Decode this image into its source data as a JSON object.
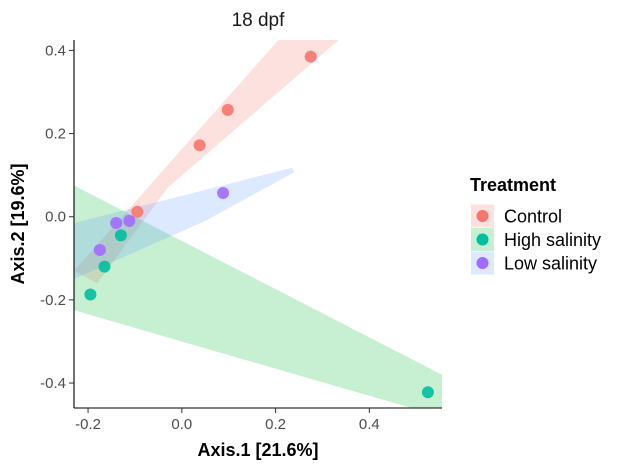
{
  "chart_data": {
    "type": "scatter",
    "title": "18 dpf",
    "xlabel": "Axis.1   [21.6%]",
    "ylabel": "Axis.2   [19.6%]",
    "xlim": [
      -0.23,
      0.555
    ],
    "ylim": [
      -0.46,
      0.425
    ],
    "x_ticks": [
      -0.2,
      0.0,
      0.2,
      0.4
    ],
    "x_tick_labels": [
      "-0.2",
      "0.0",
      "0.2",
      "0.4"
    ],
    "y_ticks": [
      -0.4,
      -0.2,
      0.0,
      0.2,
      0.4
    ],
    "y_tick_labels": [
      "-0.4",
      "-0.2",
      "0.0",
      "0.2",
      "0.4"
    ],
    "grid": false,
    "legend": {
      "title": "Treatment",
      "position": "right",
      "entries": [
        "Control",
        "High salinity",
        "Low salinity"
      ]
    },
    "series": [
      {
        "name": "Control",
        "color": "#F8766D",
        "points": [
          [
            0.275,
            0.385
          ],
          [
            0.098,
            0.257
          ],
          [
            0.038,
            0.172
          ],
          [
            -0.095,
            0.012
          ]
        ],
        "ellipse": [
          [
            -0.23,
            -0.13
          ],
          [
            0.21,
            0.43
          ],
          [
            0.34,
            0.43
          ],
          [
            -0.03,
            0.07
          ],
          [
            -0.18,
            -0.16
          ]
        ]
      },
      {
        "name": "High salinity",
        "color": "#00BA38",
        "point_color": "#00BFA0",
        "points": [
          [
            -0.13,
            -0.045
          ],
          [
            -0.165,
            -0.12
          ],
          [
            -0.195,
            -0.187
          ],
          [
            0.525,
            -0.422
          ]
        ],
        "ellipse": [
          [
            -0.23,
            0.075
          ],
          [
            0.555,
            -0.38
          ],
          [
            0.555,
            -0.46
          ],
          [
            0.49,
            -0.46
          ],
          [
            -0.23,
            -0.225
          ]
        ]
      },
      {
        "name": "Low salinity",
        "color": "#619CFF",
        "point_color": "#A16BFF",
        "points": [
          [
            0.088,
            0.057
          ],
          [
            -0.112,
            -0.01
          ],
          [
            -0.14,
            -0.015
          ],
          [
            -0.175,
            -0.08
          ]
        ],
        "ellipse": [
          [
            -0.23,
            -0.15
          ],
          [
            -0.23,
            -0.015
          ],
          [
            0.0,
            0.05
          ],
          [
            0.235,
            0.118
          ],
          [
            0.24,
            0.107
          ],
          [
            0.05,
            -0.01
          ]
        ]
      }
    ]
  }
}
